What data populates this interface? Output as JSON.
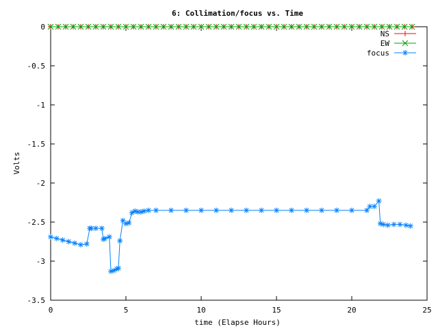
{
  "chart_data": {
    "type": "line",
    "title": "6: Collimation/focus vs. Time",
    "xlabel": "time (Elapse Hours)",
    "ylabel": "Volts",
    "xlim": [
      0,
      25
    ],
    "ylim": [
      -3.5,
      0
    ],
    "xticks": [
      "0",
      "5",
      "10",
      "15",
      "20",
      "25"
    ],
    "yticks": [
      "0",
      "-0.5",
      "-1",
      "-1.5",
      "-2",
      "-2.5",
      "-3",
      "-3.5"
    ],
    "grid": false,
    "legend_position": "top-right",
    "series": [
      {
        "name": "NS",
        "color": "#ff0000",
        "marker": "plus",
        "x": [
          0,
          0.5,
          1,
          1.5,
          2,
          2.5,
          3,
          3.5,
          4,
          4.5,
          5,
          5.5,
          6,
          6.5,
          7,
          7.5,
          8,
          8.5,
          9,
          9.5,
          10,
          10.5,
          11,
          11.5,
          12,
          12.5,
          13,
          13.5,
          14,
          14.5,
          15,
          15.5,
          16,
          16.5,
          17,
          17.5,
          18,
          18.5,
          19,
          19.5,
          20,
          20.5,
          21,
          21.5,
          22,
          22.5,
          23,
          23.5,
          24
        ],
        "values": [
          0,
          0,
          0,
          0,
          0,
          0,
          0,
          0,
          0,
          0,
          0,
          0,
          0,
          0,
          0,
          0,
          0,
          0,
          0,
          0,
          0,
          0,
          0,
          0,
          0,
          0,
          0,
          0,
          0,
          0,
          0,
          0,
          0,
          0,
          0,
          0,
          0,
          0,
          0,
          0,
          0,
          0,
          0,
          0,
          0,
          0,
          0,
          0,
          0
        ]
      },
      {
        "name": "EW",
        "color": "#00a000",
        "marker": "cross",
        "x": [
          0,
          0.5,
          1,
          1.5,
          2,
          2.5,
          3,
          3.5,
          4,
          4.5,
          5,
          5.5,
          6,
          6.5,
          7,
          7.5,
          8,
          8.5,
          9,
          9.5,
          10,
          10.5,
          11,
          11.5,
          12,
          12.5,
          13,
          13.5,
          14,
          14.5,
          15,
          15.5,
          16,
          16.5,
          17,
          17.5,
          18,
          18.5,
          19,
          19.5,
          20,
          20.5,
          21,
          21.5,
          22,
          22.5,
          23,
          23.5,
          24
        ],
        "values": [
          0,
          0,
          0,
          0,
          0,
          0,
          0,
          0,
          0,
          0,
          0,
          0,
          0,
          0,
          0,
          0,
          0,
          0,
          0,
          0,
          0,
          0,
          0,
          0,
          0,
          0,
          0,
          0,
          0,
          0,
          0,
          0,
          0,
          0,
          0,
          0,
          0,
          0,
          0,
          0,
          0,
          0,
          0,
          0,
          0,
          0,
          0,
          0,
          0
        ]
      },
      {
        "name": "focus",
        "color": "#0080ff",
        "marker": "star",
        "x": [
          0,
          0.4,
          0.8,
          1.2,
          1.6,
          2.0,
          2.4,
          2.6,
          2.7,
          3.0,
          3.4,
          3.5,
          3.6,
          3.9,
          4.0,
          4.2,
          4.4,
          4.5,
          4.6,
          4.8,
          5.0,
          5.2,
          5.4,
          5.6,
          5.8,
          6.0,
          6.2,
          6.5,
          7,
          8,
          9,
          10,
          11,
          12,
          13,
          14,
          15,
          16,
          17,
          18,
          19,
          20,
          21,
          21.2,
          21.5,
          21.8,
          21.9,
          22.1,
          22.4,
          22.8,
          23.2,
          23.6,
          23.9
        ],
        "values": [
          -2.69,
          -2.71,
          -2.73,
          -2.75,
          -2.77,
          -2.79,
          -2.78,
          -2.58,
          -2.58,
          -2.58,
          -2.58,
          -2.72,
          -2.71,
          -2.69,
          -3.13,
          -3.12,
          -3.1,
          -3.09,
          -2.74,
          -2.48,
          -2.52,
          -2.51,
          -2.38,
          -2.36,
          -2.37,
          -2.37,
          -2.36,
          -2.35,
          -2.35,
          -2.35,
          -2.35,
          -2.35,
          -2.35,
          -2.35,
          -2.35,
          -2.35,
          -2.35,
          -2.35,
          -2.35,
          -2.35,
          -2.35,
          -2.35,
          -2.35,
          -2.3,
          -2.3,
          -2.23,
          -2.52,
          -2.53,
          -2.54,
          -2.53,
          -2.53,
          -2.54,
          -2.55
        ]
      }
    ]
  }
}
